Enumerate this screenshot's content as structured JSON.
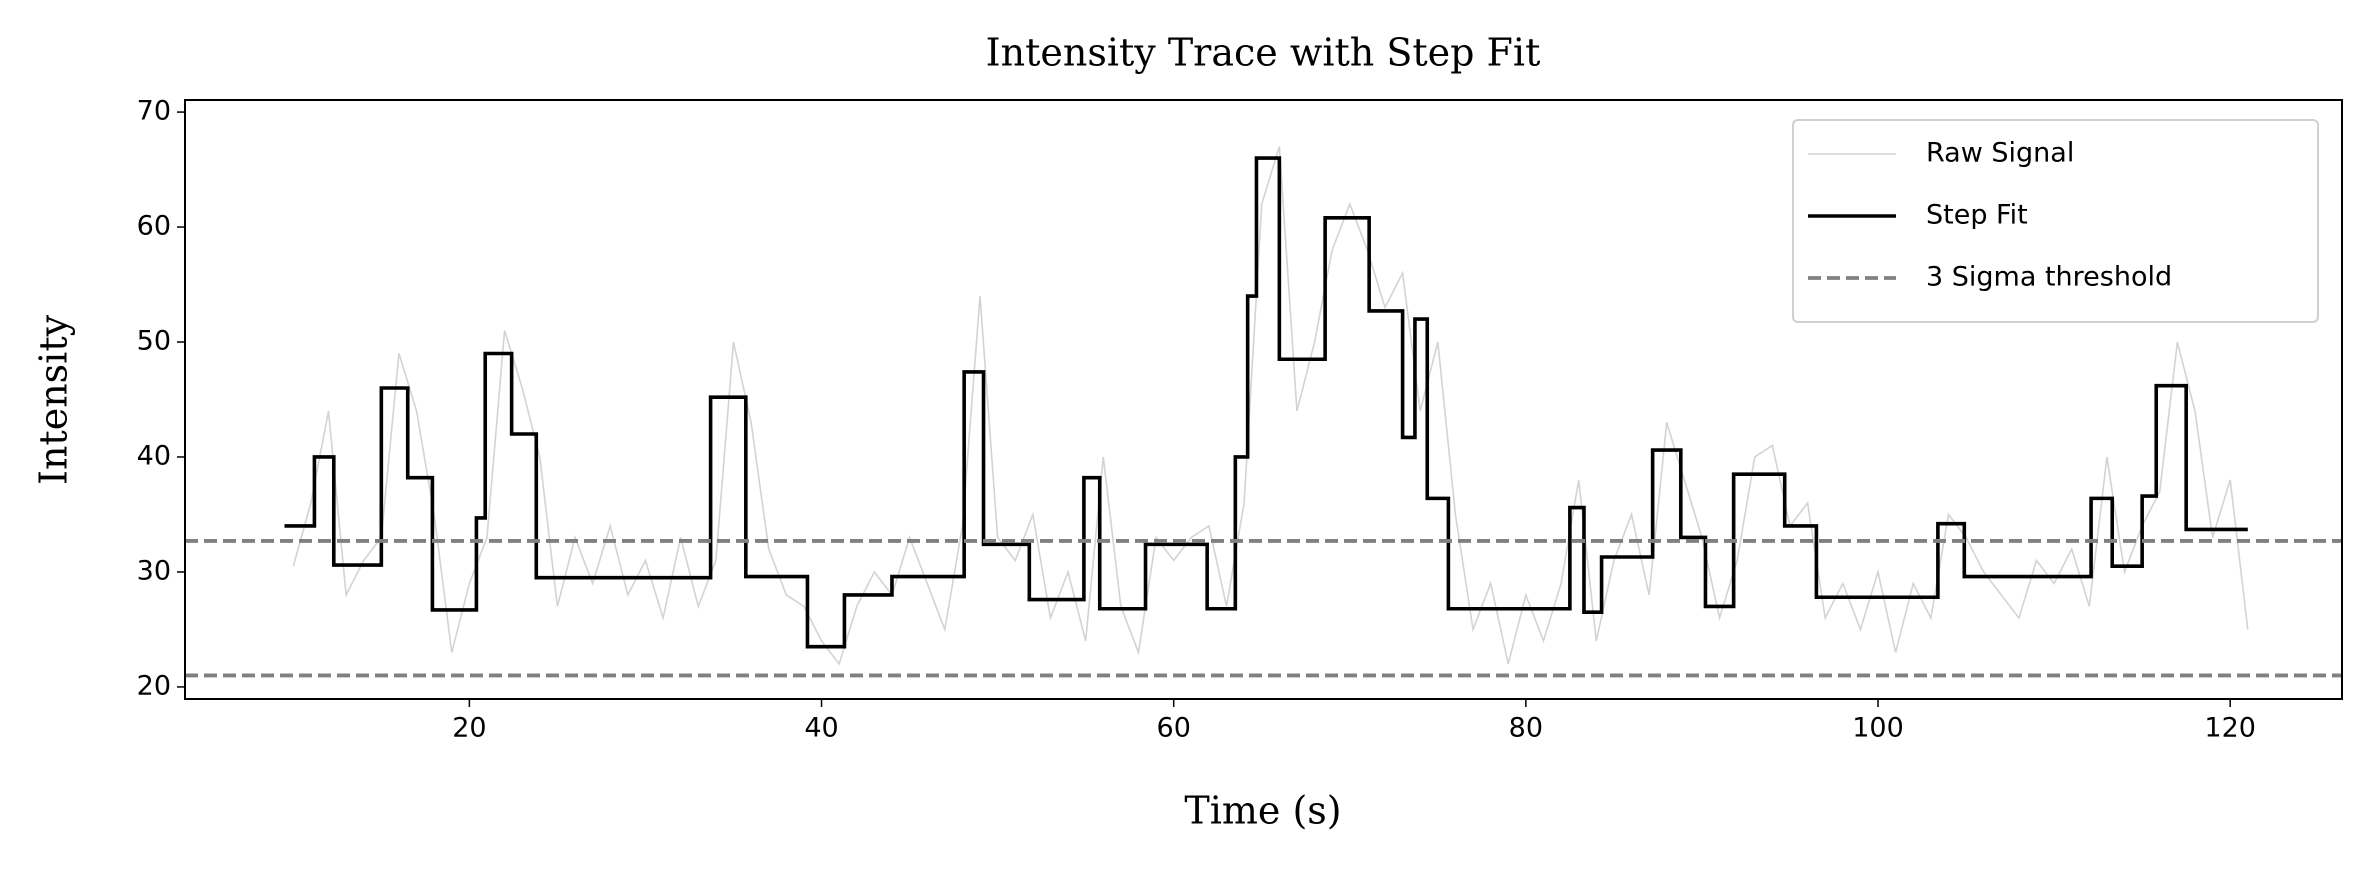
{
  "chart_data": {
    "type": "line",
    "title": "Intensity Trace with Step Fit",
    "xlabel": "Time (s)",
    "ylabel": "Intensity",
    "xlim": [
      3.85,
      126.35
    ],
    "ylim": [
      18.95,
      71.05
    ],
    "xticks": [
      20,
      40,
      60,
      80,
      100,
      120
    ],
    "yticks": [
      20,
      30,
      40,
      50,
      60,
      70
    ],
    "legend": "upper right",
    "series": [
      {
        "name": "Raw Signal",
        "color": "#d3d3d3",
        "linestyle": "solid",
        "x": [
          10,
          11,
          12,
          13,
          14,
          15,
          16,
          17,
          18,
          19,
          20,
          21,
          22,
          23,
          24,
          25,
          26,
          27,
          28,
          29,
          30,
          31,
          32,
          33,
          34,
          35,
          36,
          37,
          38,
          39,
          40,
          41,
          42,
          43,
          44,
          45,
          46,
          47,
          48,
          49,
          50,
          51,
          52,
          53,
          54,
          55,
          56,
          57,
          58,
          59,
          60,
          61,
          62,
          63,
          64,
          65,
          66,
          67,
          68,
          69,
          70,
          71,
          72,
          73,
          74,
          75,
          76,
          77,
          78,
          79,
          80,
          81,
          82,
          83,
          84,
          85,
          86,
          87,
          88,
          89,
          90,
          91,
          92,
          93,
          94,
          95,
          96,
          97,
          98,
          99,
          100,
          101,
          102,
          103,
          104,
          105,
          106,
          107,
          108,
          109,
          110,
          111,
          112,
          113,
          114,
          115,
          116,
          117,
          118,
          119,
          120,
          121
        ],
        "values": [
          30.5,
          36,
          44,
          28,
          31,
          33,
          49,
          44,
          35,
          23,
          29,
          33,
          51,
          46,
          40,
          27,
          33,
          29,
          34,
          28,
          31,
          26,
          33,
          27,
          31,
          50,
          43,
          32,
          28,
          27,
          24,
          22,
          27,
          30,
          28,
          33,
          29,
          25,
          34,
          54,
          33,
          31,
          35,
          26,
          30,
          24,
          40,
          27,
          23,
          33,
          31,
          33,
          34,
          27,
          36,
          62,
          67,
          44,
          50,
          58,
          62,
          58,
          53,
          56,
          44,
          50,
          35,
          25,
          29,
          22,
          28,
          24,
          29,
          38,
          24,
          31,
          35,
          28,
          43,
          38,
          33,
          26,
          31,
          40,
          41,
          34,
          36,
          26,
          29,
          25,
          30,
          23,
          29,
          26,
          35,
          33,
          30,
          28,
          26,
          31,
          29,
          32,
          27,
          40,
          30,
          34,
          37,
          50,
          44,
          33,
          38,
          25
        ]
      },
      {
        "name": "Step Fit",
        "color": "#000000",
        "linestyle": "solid",
        "drawstyle": "steps-post",
        "x": [
          9.5,
          11.2,
          12.3,
          15.0,
          16.5,
          17.9,
          20.4,
          20.9,
          22.4,
          23.8,
          33.7,
          35.7,
          39.2,
          41.3,
          44.0,
          48.1,
          49.2,
          51.8,
          54.9,
          55.8,
          58.4,
          61.9,
          63.5,
          64.2,
          64.7,
          66.0,
          68.6,
          71.1,
          73.0,
          73.7,
          74.4,
          75.6,
          82.5,
          83.3,
          84.3,
          87.2,
          88.8,
          90.2,
          91.8,
          94.7,
          96.5,
          103.4,
          104.9,
          112.1,
          113.3,
          115.0,
          115.8,
          117.5,
          121.0
        ],
        "values": [
          34,
          40,
          30.6,
          46,
          38.2,
          26.7,
          34.7,
          49,
          42,
          29.5,
          45.2,
          29.6,
          23.5,
          28,
          29.6,
          47.4,
          32.4,
          27.6,
          38.2,
          26.8,
          32.4,
          26.8,
          40,
          54,
          66,
          48.5,
          60.8,
          52.7,
          41.7,
          52,
          36.4,
          26.8,
          35.6,
          26.5,
          31.3,
          40.6,
          33,
          27,
          38.5,
          34,
          27.8,
          34.2,
          29.6,
          36.4,
          30.5,
          36.6,
          46.2,
          33.7,
          33.7
        ]
      },
      {
        "name": "3 Sigma threshold",
        "color": "#808080",
        "linestyle": "dashed",
        "kind": "hline",
        "values": [
          32.7,
          21.0
        ]
      }
    ]
  }
}
